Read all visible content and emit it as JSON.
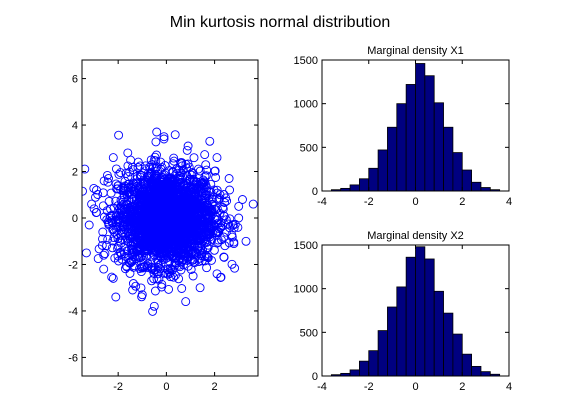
{
  "figure": {
    "title": "Min kurtosis normal distribution"
  },
  "chart_data": [
    {
      "type": "scatter",
      "title": "",
      "xlabel": "",
      "ylabel": "",
      "xlim": [
        -3.5,
        3.8
      ],
      "ylim": [
        -6.8,
        6.8
      ],
      "xticks": [
        -2,
        0,
        2
      ],
      "yticks": [
        -6,
        -4,
        -2,
        0,
        2,
        4,
        6
      ],
      "marker": "open-circle",
      "color": "#0000ff",
      "grid": false,
      "extreme_points": [
        {
          "x": -2.2,
          "y": 2.6
        },
        {
          "x": -2.9,
          "y": 1.2
        },
        {
          "x": -3.2,
          "y": -0.3
        },
        {
          "x": -3.1,
          "y": 0.6
        },
        {
          "x": -2.6,
          "y": -2.2
        },
        {
          "x": -2.2,
          "y": -2.6
        },
        {
          "x": -2.1,
          "y": -3.4
        },
        {
          "x": -1.4,
          "y": -3.1
        },
        {
          "x": -1.0,
          "y": -3.3
        },
        {
          "x": -0.5,
          "y": -3.8
        },
        {
          "x": 0.8,
          "y": -3.6
        },
        {
          "x": 1.4,
          "y": -3.0
        },
        {
          "x": 2.1,
          "y": -2.4
        },
        {
          "x": 2.8,
          "y": -1.1
        },
        {
          "x": 3.0,
          "y": 0.0
        },
        {
          "x": 3.6,
          "y": 0.6
        },
        {
          "x": 3.0,
          "y": 0.5
        },
        {
          "x": 2.6,
          "y": 1.7
        },
        {
          "x": 2.1,
          "y": 2.6
        },
        {
          "x": 1.8,
          "y": 3.3
        },
        {
          "x": 0.9,
          "y": 3.1
        },
        {
          "x": -0.4,
          "y": 3.7
        },
        {
          "x": -0.1,
          "y": 3.4
        },
        {
          "x": -1.6,
          "y": 2.8
        },
        {
          "x": -2.4,
          "y": 1.7
        },
        {
          "x": -2.6,
          "y": -1.6
        },
        {
          "x": -0.1,
          "y": 3.5
        }
      ]
    },
    {
      "type": "bar",
      "title": "Marginal density X1",
      "xlim": [
        -4,
        4
      ],
      "ylim": [
        0,
        1500
      ],
      "xticks": [
        -4,
        -2,
        0,
        2,
        4
      ],
      "yticks": [
        0,
        500,
        1000,
        1500
      ],
      "bar_color": "#000080",
      "edge_color": "#000000",
      "bin_edges": [
        -3.6,
        -3.2,
        -2.8,
        -2.4,
        -2.0,
        -1.6,
        -1.2,
        -0.8,
        -0.4,
        0.0,
        0.4,
        0.8,
        1.2,
        1.6,
        2.0,
        2.4,
        2.8,
        3.2,
        3.6
      ],
      "values": [
        15,
        30,
        70,
        140,
        260,
        470,
        730,
        1000,
        1220,
        1460,
        1320,
        1010,
        730,
        440,
        240,
        100,
        40,
        15
      ]
    },
    {
      "type": "bar",
      "title": "Marginal density X2",
      "xlim": [
        -4,
        4
      ],
      "ylim": [
        0,
        1500
      ],
      "xticks": [
        -4,
        -2,
        0,
        2,
        4
      ],
      "yticks": [
        0,
        500,
        1000,
        1500
      ],
      "bar_color": "#000080",
      "edge_color": "#000000",
      "bin_edges": [
        -3.6,
        -3.2,
        -2.8,
        -2.4,
        -2.0,
        -1.6,
        -1.2,
        -0.8,
        -0.4,
        0.0,
        0.4,
        0.8,
        1.2,
        1.6,
        2.0,
        2.4,
        2.8,
        3.2,
        3.6
      ],
      "values": [
        15,
        30,
        70,
        170,
        290,
        520,
        790,
        1020,
        1360,
        1480,
        1340,
        970,
        720,
        480,
        250,
        110,
        50,
        20
      ]
    }
  ]
}
